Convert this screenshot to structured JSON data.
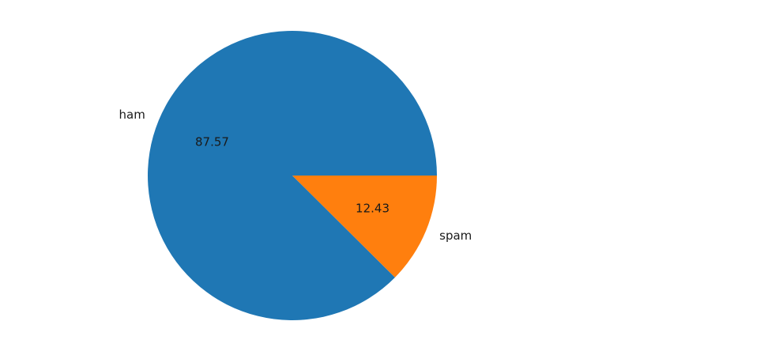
{
  "chart_data": {
    "type": "pie",
    "categories": [
      "ham",
      "spam"
    ],
    "values": [
      87.57,
      12.43
    ],
    "value_labels": [
      "87.57",
      "12.43"
    ],
    "colors": [
      "#1f77b4",
      "#ff7f0e"
    ],
    "start_angle_deg": 0,
    "direction": "counterclockwise",
    "title": "",
    "legend": "none"
  }
}
